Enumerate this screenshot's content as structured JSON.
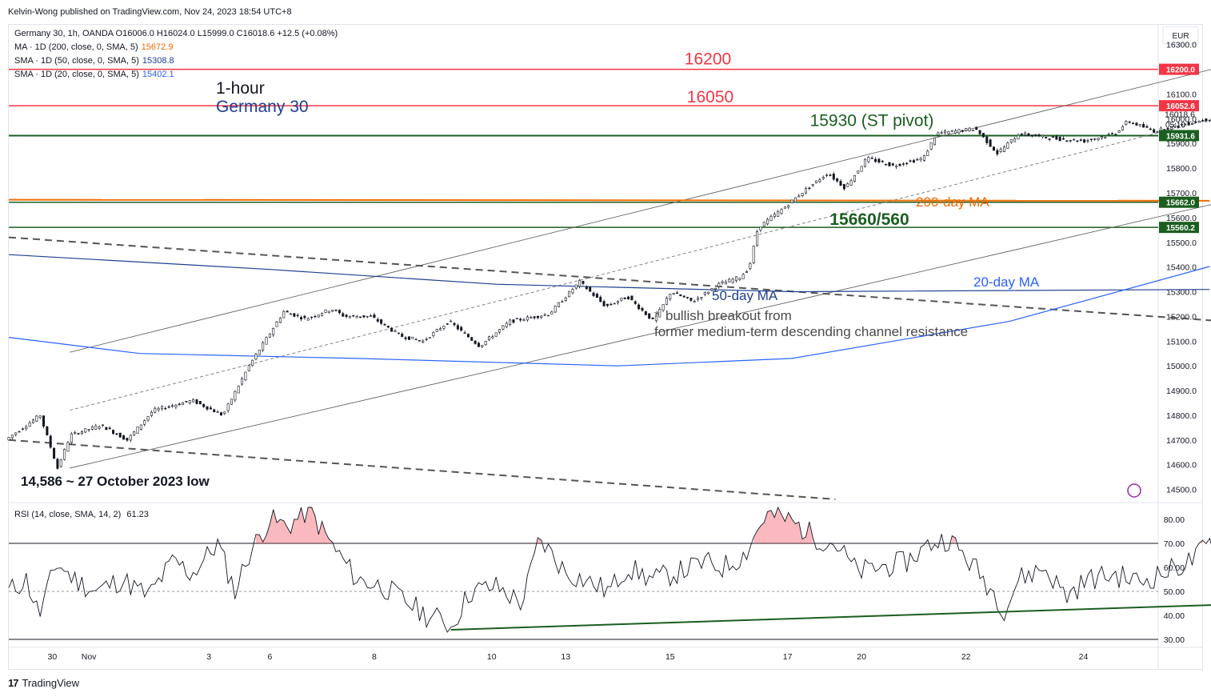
{
  "publisher": "Kelvin-Wong published on TradingView.com, Nov 24, 2023 18:54 UTC+8",
  "footer": {
    "brand": "TradingView",
    "logo_mark": "17"
  },
  "legend": {
    "symbol": "Germany 30, 1h, OANDA  O16006.0  H16024.0  L15999.0  C16018.6  +12.5 (+0.08%)",
    "ma200_label": "MA · 1D (200, close, 0, SMA, 5)",
    "ma200_value": "15672.9",
    "sma50_label": "SMA · 1D (50, close, 0, SMA, 5)",
    "sma50_value": "15308.8",
    "sma20_label": "SMA · 1D (20, close, 0, SMA, 5)",
    "sma20_value": "15402.1"
  },
  "rsi_legend": {
    "label": "RSI (14, close, SMA, 14, 2)",
    "value": "61.23"
  },
  "chart_data": [
    {
      "type": "candlestick",
      "currency": "EUR",
      "title_lines": [
        "1-hour",
        "Germany 30"
      ],
      "ylim": [
        14450,
        16380
      ],
      "y_ticks": [
        14500,
        14600,
        14700,
        14800,
        14900,
        15000,
        15100,
        15200,
        15300,
        15400,
        15500,
        15600,
        15700,
        15800,
        15900,
        16000,
        16100,
        16200,
        16300
      ],
      "x_ticks": [
        {
          "label": "30",
          "bar": 50
        },
        {
          "label": "Nov",
          "bar": 92
        },
        {
          "label": "3",
          "bar": 230
        },
        {
          "label": "6",
          "bar": 300
        },
        {
          "label": "8",
          "bar": 420
        },
        {
          "label": "10",
          "bar": 555
        },
        {
          "label": "13",
          "bar": 640
        },
        {
          "label": "15",
          "bar": 760
        },
        {
          "label": "17",
          "bar": 895
        },
        {
          "label": "20",
          "bar": 980
        },
        {
          "label": "22",
          "bar": 1100
        },
        {
          "label": "24",
          "bar": 1235
        }
      ],
      "bar_count": 1320,
      "price_anchors": [
        [
          0,
          14700
        ],
        [
          40,
          14800
        ],
        [
          60,
          14586
        ],
        [
          75,
          14720
        ],
        [
          110,
          14760
        ],
        [
          140,
          14700
        ],
        [
          170,
          14820
        ],
        [
          215,
          14860
        ],
        [
          250,
          14800
        ],
        [
          280,
          15000
        ],
        [
          320,
          15220
        ],
        [
          345,
          15190
        ],
        [
          375,
          15230
        ],
        [
          390,
          15200
        ],
        [
          420,
          15200
        ],
        [
          455,
          15120
        ],
        [
          480,
          15100
        ],
        [
          510,
          15180
        ],
        [
          545,
          15080
        ],
        [
          580,
          15180
        ],
        [
          625,
          15210
        ],
        [
          660,
          15340
        ],
        [
          690,
          15240
        ],
        [
          715,
          15280
        ],
        [
          745,
          15180
        ],
        [
          765,
          15300
        ],
        [
          790,
          15260
        ],
        [
          820,
          15330
        ],
        [
          845,
          15360
        ],
        [
          855,
          15400
        ],
        [
          865,
          15560
        ],
        [
          895,
          15640
        ],
        [
          915,
          15700
        ],
        [
          945,
          15780
        ],
        [
          965,
          15720
        ],
        [
          990,
          15840
        ],
        [
          1020,
          15810
        ],
        [
          1055,
          15840
        ],
        [
          1070,
          15940
        ],
        [
          1115,
          15960
        ],
        [
          1140,
          15860
        ],
        [
          1165,
          15940
        ],
        [
          1205,
          15920
        ],
        [
          1240,
          15910
        ],
        [
          1275,
          15940
        ],
        [
          1290,
          15990
        ],
        [
          1320,
          15950
        ],
        [
          1370,
          15990
        ],
        [
          1400,
          16010
        ],
        [
          1425,
          16018
        ]
      ],
      "last": {
        "close": 16018.6,
        "countdown": "05:10"
      },
      "horizontal_levels": [
        {
          "price": 16200,
          "color": "#f23645",
          "label": "16200",
          "tag": "16200.0"
        },
        {
          "price": 16052.6,
          "color": "#f23645",
          "label": "16050",
          "tag": "16052.6"
        },
        {
          "price": 15931.6,
          "color": "#1b5e20",
          "label": "15930 (ST pivot)",
          "tag": "15931.6"
        },
        {
          "price": 15662.0,
          "color": "#1b5e20",
          "label": "",
          "tag": "15662.0"
        },
        {
          "price": 15560.2,
          "color": "#1b5e20",
          "label": "15660/560",
          "tag": "15560.2"
        }
      ],
      "moving_averages": [
        {
          "name": "200-day MA",
          "color": "#ef6c00",
          "points": [
            [
              0,
              15672
            ],
            [
              1380,
              15668
            ]
          ]
        },
        {
          "name": "50-day MA",
          "color": "#1e3f8f",
          "points": [
            [
              0,
              15450
            ],
            [
              300,
              15390
            ],
            [
              560,
              15330
            ],
            [
              900,
              15300
            ],
            [
              1380,
              15309
            ]
          ]
        },
        {
          "name": "20-day MA",
          "color": "#2962ff",
          "points": [
            [
              0,
              15115
            ],
            [
              150,
              15050
            ],
            [
              400,
              15030
            ],
            [
              700,
              15000
            ],
            [
              900,
              15030
            ],
            [
              1150,
              15180
            ],
            [
              1380,
              15402
            ]
          ]
        }
      ],
      "trend_lines": [
        {
          "style": "solid",
          "color": "#666666",
          "points": [
            [
              70,
              15055
            ],
            [
              1440,
              16250
            ]
          ]
        },
        {
          "style": "solid",
          "color": "#666666",
          "points": [
            [
              70,
              14586
            ],
            [
              1440,
              15700
            ]
          ]
        },
        {
          "style": "dashed-thin",
          "color": "#777777",
          "points": [
            [
              70,
              14820
            ],
            [
              1440,
              16050
            ]
          ]
        },
        {
          "style": "dashed-thick",
          "color": "#555555",
          "points": [
            [
              0,
              15520
            ],
            [
              1440,
              15170
            ]
          ]
        },
        {
          "style": "dashed-thick",
          "color": "#555555",
          "points": [
            [
              0,
              14700
            ],
            [
              950,
              14460
            ]
          ]
        }
      ],
      "annotations": [
        {
          "text": "200-day MA",
          "color": "#ef6c00"
        },
        {
          "text": "50-day MA",
          "color": "#1e3f8f"
        },
        {
          "text": "20-day MA",
          "color": "#2962ff"
        },
        {
          "text": "bullish breakout from",
          "color": "#4a4a4a"
        },
        {
          "text": "former medium-term descending channel resistance",
          "color": "#4a4a4a"
        },
        {
          "text": "14,586 ~ 27 October 2023 low",
          "color": "#131722"
        }
      ]
    },
    {
      "type": "line",
      "name": "RSI",
      "ylim": [
        27,
        87
      ],
      "y_ticks": [
        30,
        40,
        50,
        60,
        70,
        80
      ],
      "overbought": 70,
      "mid": 50,
      "series_anchors": [
        [
          0,
          50
        ],
        [
          20,
          55
        ],
        [
          35,
          40
        ],
        [
          55,
          62
        ],
        [
          75,
          55
        ],
        [
          100,
          50
        ],
        [
          130,
          55
        ],
        [
          160,
          48
        ],
        [
          190,
          63
        ],
        [
          210,
          57
        ],
        [
          240,
          70
        ],
        [
          260,
          50
        ],
        [
          275,
          65
        ],
        [
          300,
          80
        ],
        [
          320,
          77
        ],
        [
          345,
          84
        ],
        [
          370,
          70
        ],
        [
          400,
          55
        ],
        [
          430,
          52
        ],
        [
          460,
          45
        ],
        [
          480,
          40
        ],
        [
          500,
          38
        ],
        [
          508,
          35
        ],
        [
          530,
          50
        ],
        [
          560,
          52
        ],
        [
          590,
          45
        ],
        [
          610,
          72
        ],
        [
          640,
          58
        ],
        [
          660,
          55
        ],
        [
          690,
          50
        ],
        [
          710,
          60
        ],
        [
          740,
          55
        ],
        [
          770,
          58
        ],
        [
          800,
          62
        ],
        [
          820,
          60
        ],
        [
          845,
          65
        ],
        [
          870,
          82
        ],
        [
          895,
          80
        ],
        [
          930,
          72
        ],
        [
          950,
          70
        ],
        [
          975,
          58
        ],
        [
          1000,
          60
        ],
        [
          1030,
          62
        ],
        [
          1060,
          70
        ],
        [
          1080,
          72
        ],
        [
          1110,
          60
        ],
        [
          1135,
          48
        ],
        [
          1145,
          42
        ],
        [
          1160,
          55
        ],
        [
          1190,
          60
        ],
        [
          1215,
          48
        ],
        [
          1240,
          55
        ],
        [
          1270,
          57
        ],
        [
          1300,
          54
        ],
        [
          1330,
          58
        ],
        [
          1360,
          63
        ],
        [
          1380,
          70
        ],
        [
          1400,
          60
        ],
        [
          1410,
          46
        ],
        [
          1425,
          61
        ]
      ],
      "support_line": [
        [
          508,
          34
        ],
        [
          1440,
          45
        ]
      ],
      "highlight_box": {
        "bar_from": 1395,
        "bar_to": 1435,
        "rsi_from": 41,
        "rsi_to": 49
      }
    }
  ],
  "colors": {
    "candle_up": "#131722",
    "candle_down": "#131722",
    "candle_up_fill": "#ffffff",
    "axis_text": "#131722",
    "grid": "#f0f3fa",
    "tag_text": "#ffffff",
    "rsi_line": "#131722",
    "rsi_fill": "#f23645"
  }
}
